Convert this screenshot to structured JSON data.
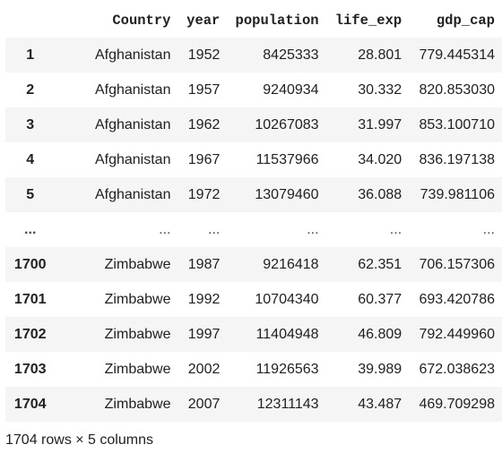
{
  "table": {
    "columns": [
      "",
      "Country",
      "year",
      "population",
      "life_exp",
      "gdp_cap"
    ],
    "rows": [
      {
        "index": "1",
        "country": "Afghanistan",
        "year": "1952",
        "population": "8425333",
        "life_exp": "28.801",
        "gdp_cap": "779.445314"
      },
      {
        "index": "2",
        "country": "Afghanistan",
        "year": "1957",
        "population": "9240934",
        "life_exp": "30.332",
        "gdp_cap": "820.853030"
      },
      {
        "index": "3",
        "country": "Afghanistan",
        "year": "1962",
        "population": "10267083",
        "life_exp": "31.997",
        "gdp_cap": "853.100710"
      },
      {
        "index": "4",
        "country": "Afghanistan",
        "year": "1967",
        "population": "11537966",
        "life_exp": "34.020",
        "gdp_cap": "836.197138"
      },
      {
        "index": "5",
        "country": "Afghanistan",
        "year": "1972",
        "population": "13079460",
        "life_exp": "36.088",
        "gdp_cap": "739.981106"
      },
      {
        "index": "...",
        "country": "...",
        "year": "...",
        "population": "...",
        "life_exp": "...",
        "gdp_cap": "..."
      },
      {
        "index": "1700",
        "country": "Zimbabwe",
        "year": "1987",
        "population": "9216418",
        "life_exp": "62.351",
        "gdp_cap": "706.157306"
      },
      {
        "index": "1701",
        "country": "Zimbabwe",
        "year": "1992",
        "population": "10704340",
        "life_exp": "60.377",
        "gdp_cap": "693.420786"
      },
      {
        "index": "1702",
        "country": "Zimbabwe",
        "year": "1997",
        "population": "11404948",
        "life_exp": "46.809",
        "gdp_cap": "792.449960"
      },
      {
        "index": "1703",
        "country": "Zimbabwe",
        "year": "2002",
        "population": "11926563",
        "life_exp": "39.989",
        "gdp_cap": "672.038623"
      },
      {
        "index": "1704",
        "country": "Zimbabwe",
        "year": "2007",
        "population": "12311143",
        "life_exp": "43.487",
        "gdp_cap": "469.709298"
      }
    ]
  },
  "footer": {
    "shape_text": "1704 rows × 5 columns"
  }
}
